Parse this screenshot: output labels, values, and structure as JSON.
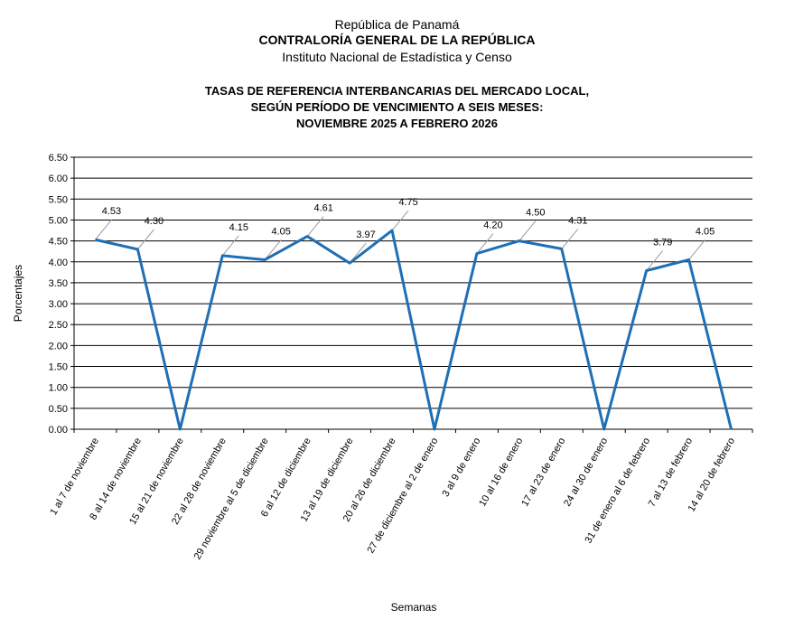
{
  "header": {
    "line1": "República de Panamá",
    "line2": "CONTRALORÍA GENERAL DE LA REPÚBLICA",
    "line3": "Instituto  Nacional de Estadística y Censo"
  },
  "chart_data": {
    "type": "line",
    "title": [
      "TASAS DE REFERENCIA INTERBANCARIAS DEL MERCADO LOCAL,",
      "SEGÚN PERÍODO DE VENCIMIENTO A SEIS MESES:",
      "NOVIEMBRE 2025 A FEBRERO 2026"
    ],
    "xlabel": "Semanas",
    "ylabel": "Porcentajes",
    "ylim": [
      0,
      6.5
    ],
    "yticks": [
      "0.00",
      "0.50",
      "1.00",
      "1.50",
      "2.00",
      "2.50",
      "3.00",
      "3.50",
      "4.00",
      "4.50",
      "5.00",
      "5.50",
      "6.00",
      "6.50"
    ],
    "grid": true,
    "color": "#1F6FB4",
    "categories": [
      "1 al 7 de noviembre",
      "8 al 14 de noviembre",
      "15 al 21 de noviembre",
      "22 al 28 de noviembre",
      "29 noviembre al 5 de diciembre",
      "6 al 12 de diciembre",
      "13 al 19 de diciembre",
      "20 al 26 de diciembre",
      "27 de diciembre al 2 de enero",
      "3 al 9 de enero",
      "10 al 16 de enero",
      "17 al 23 de enero",
      "24 al 30 de enero",
      "31 de enero al 6 de febrero",
      "7 al 13 de febrero",
      "14 al 20 de febrero"
    ],
    "values": [
      4.53,
      4.3,
      0,
      4.15,
      4.05,
      4.61,
      3.97,
      4.75,
      0,
      4.2,
      4.5,
      4.31,
      0,
      3.79,
      4.05,
      0
    ],
    "labels": [
      "4.53",
      "4.30",
      "",
      "4.15",
      "4.05",
      "4.61",
      "3.97",
      "4.75",
      "",
      "4.20",
      "4.50",
      "4.31",
      "",
      "3.79",
      "4.05",
      ""
    ]
  }
}
